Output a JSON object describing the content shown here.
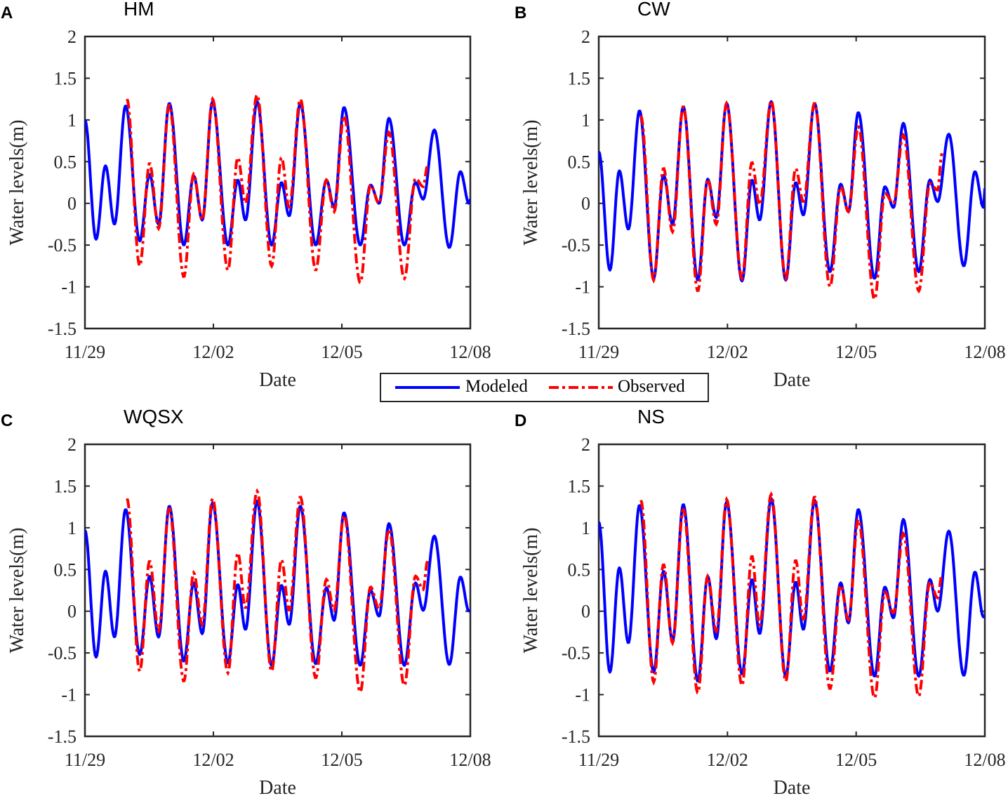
{
  "chart_data": [
    {
      "type": "line",
      "panel_label": "A",
      "title": "HM",
      "xlabel": "Date",
      "ylabel": "Water levels(m)",
      "ylim": [
        -1.5,
        2
      ],
      "xlim_days": [
        0,
        9
      ],
      "yticks": [
        "2",
        "1.5",
        "1",
        "0.5",
        "0",
        "-0.5",
        "-1",
        "-1.5"
      ],
      "xticks": [
        "11/29",
        "12/02",
        "12/05",
        "12/08"
      ],
      "series": [
        {
          "name": "Modeled",
          "values": [
            1.0,
            -0.43,
            0.45,
            -0.25,
            1.17,
            -0.45,
            0.35,
            -0.25,
            1.2,
            -0.5,
            0.33,
            -0.2,
            1.22,
            -0.5,
            0.28,
            -0.2,
            1.22,
            -0.5,
            0.25,
            -0.15,
            1.2,
            -0.5,
            0.28,
            -0.05,
            1.15,
            -0.5,
            0.22,
            0.0,
            1.02,
            -0.5,
            0.25,
            0.05,
            0.88,
            -0.53,
            0.38,
            0.0,
            0.05
          ]
        },
        {
          "name": "Observed",
          "values": [
            1.25,
            -0.75,
            0.48,
            -0.3,
            1.18,
            -0.88,
            0.35,
            -0.2,
            1.25,
            -0.8,
            0.55,
            0.0,
            1.3,
            -0.75,
            0.55,
            -0.05,
            1.25,
            -0.8,
            0.28,
            -0.1,
            1.05,
            -0.95,
            0.22,
            0.0,
            0.85,
            -0.9,
            0.3,
            0.2,
            0.45
          ]
        }
      ]
    },
    {
      "type": "line",
      "panel_label": "B",
      "title": "CW",
      "xlabel": "Date",
      "ylabel": "Water levels(m)",
      "ylim": [
        -1.5,
        2
      ],
      "xlim_days": [
        0,
        9
      ],
      "yticks": [
        "2",
        "1.5",
        "1",
        "0.5",
        "0",
        "-0.5",
        "-1",
        "-1.5"
      ],
      "xticks": [
        "11/29",
        "12/02",
        "12/05",
        "12/08"
      ],
      "series": [
        {
          "name": "Modeled",
          "values": [
            0.62,
            -0.8,
            0.39,
            -0.31,
            1.11,
            -0.9,
            0.34,
            -0.25,
            1.16,
            -0.92,
            0.29,
            -0.17,
            1.2,
            -0.93,
            0.28,
            -0.2,
            1.22,
            -0.92,
            0.25,
            -0.14,
            1.2,
            -0.82,
            0.23,
            -0.1,
            1.09,
            -0.9,
            0.2,
            -0.05,
            0.96,
            -0.82,
            0.28,
            0.02,
            0.83,
            -0.75,
            0.38,
            -0.05,
            0.18
          ]
        },
        {
          "name": "Observed",
          "values": [
            1.05,
            -0.92,
            0.42,
            -0.34,
            1.16,
            -1.05,
            0.29,
            -0.25,
            1.2,
            -0.9,
            0.49,
            -0.02,
            1.23,
            -0.9,
            0.42,
            0.02,
            1.2,
            -1.0,
            0.2,
            -0.1,
            0.92,
            -1.15,
            0.12,
            0.0,
            0.82,
            -1.05,
            0.24,
            0.16,
            0.6
          ]
        }
      ]
    },
    {
      "type": "line",
      "panel_label": "C",
      "title": "WQSX",
      "xlabel": "Date",
      "ylabel": "Water levels(m)",
      "ylim": [
        -1.5,
        2
      ],
      "xlim_days": [
        0,
        9
      ],
      "yticks": [
        "2",
        "1.5",
        "1",
        "0.5",
        "0",
        "-0.5",
        "-1",
        "-1.5"
      ],
      "xticks": [
        "11/29",
        "12/02",
        "12/05",
        "12/08"
      ],
      "series": [
        {
          "name": "Modeled",
          "values": [
            0.97,
            -0.55,
            0.48,
            -0.31,
            1.22,
            -0.52,
            0.42,
            -0.31,
            1.26,
            -0.6,
            0.34,
            -0.27,
            1.3,
            -0.62,
            0.32,
            -0.22,
            1.32,
            -0.65,
            0.31,
            -0.16,
            1.26,
            -0.63,
            0.28,
            -0.11,
            1.18,
            -0.65,
            0.25,
            -0.06,
            1.05,
            -0.65,
            0.34,
            0.01,
            0.9,
            -0.64,
            0.41,
            0.0,
            0.01
          ]
        },
        {
          "name": "Observed",
          "values": [
            1.35,
            -0.72,
            0.6,
            -0.24,
            1.23,
            -0.84,
            0.46,
            -0.16,
            1.35,
            -0.74,
            0.7,
            0.04,
            1.44,
            -0.72,
            0.62,
            0.01,
            1.37,
            -0.8,
            0.38,
            0.01,
            1.15,
            -0.97,
            0.29,
            0.03,
            0.98,
            -0.89,
            0.42,
            0.26,
            0.6
          ]
        }
      ]
    },
    {
      "type": "line",
      "panel_label": "D",
      "title": "NS",
      "xlabel": "Date",
      "ylabel": "Water levels(m)",
      "ylim": [
        -1.5,
        2
      ],
      "xlim_days": [
        0,
        9
      ],
      "yticks": [
        "2",
        "1.5",
        "1",
        "0.5",
        "0",
        "-0.5",
        "-1",
        "-1.5"
      ],
      "xticks": [
        "11/29",
        "12/02",
        "12/05",
        "12/08"
      ],
      "series": [
        {
          "name": "Modeled",
          "values": [
            1.07,
            -0.73,
            0.52,
            -0.38,
            1.27,
            -0.73,
            0.48,
            -0.36,
            1.28,
            -0.84,
            0.42,
            -0.33,
            1.31,
            -0.75,
            0.38,
            -0.27,
            1.35,
            -0.78,
            0.35,
            -0.22,
            1.33,
            -0.72,
            0.34,
            -0.14,
            1.22,
            -0.78,
            0.29,
            -0.08,
            1.1,
            -0.78,
            0.38,
            0.0,
            0.96,
            -0.77,
            0.47,
            -0.07,
            -0.07
          ]
        },
        {
          "name": "Observed",
          "values": [
            1.33,
            -0.85,
            0.56,
            -0.38,
            1.22,
            -0.98,
            0.42,
            -0.24,
            1.34,
            -0.89,
            0.66,
            -0.17,
            1.4,
            -0.84,
            0.61,
            -0.1,
            1.37,
            -0.93,
            0.31,
            -0.1,
            1.1,
            -1.04,
            0.23,
            -0.02,
            0.93,
            -1.02,
            0.35,
            0.16,
            0.44
          ]
        }
      ]
    }
  ],
  "modeled_times_days": [
    0,
    0.26,
    0.48,
    0.69,
    0.95,
    1.28,
    1.51,
    1.72,
    1.97,
    2.31,
    2.54,
    2.74,
    2.98,
    3.34,
    3.57,
    3.75,
    4.02,
    4.36,
    4.59,
    4.77,
    5.03,
    5.39,
    5.64,
    5.82,
    6.05,
    6.43,
    6.67,
    6.87,
    7.1,
    7.46,
    7.72,
    7.9,
    8.16,
    8.51,
    8.77,
    8.97,
    9.0
  ],
  "observed_times_days": [
    0.98,
    1.28,
    1.51,
    1.72,
    1.97,
    2.31,
    2.54,
    2.74,
    2.98,
    3.34,
    3.57,
    3.75,
    4.02,
    4.36,
    4.59,
    4.77,
    5.03,
    5.39,
    5.64,
    5.82,
    6.05,
    6.43,
    6.67,
    6.87,
    7.1,
    7.46,
    7.72,
    7.9,
    8.0
  ],
  "legend": {
    "modeled": "Modeled",
    "observed": "Observed",
    "placement": "center"
  },
  "colors": {
    "modeled": "#0000ff",
    "observed": "#ff0000"
  }
}
